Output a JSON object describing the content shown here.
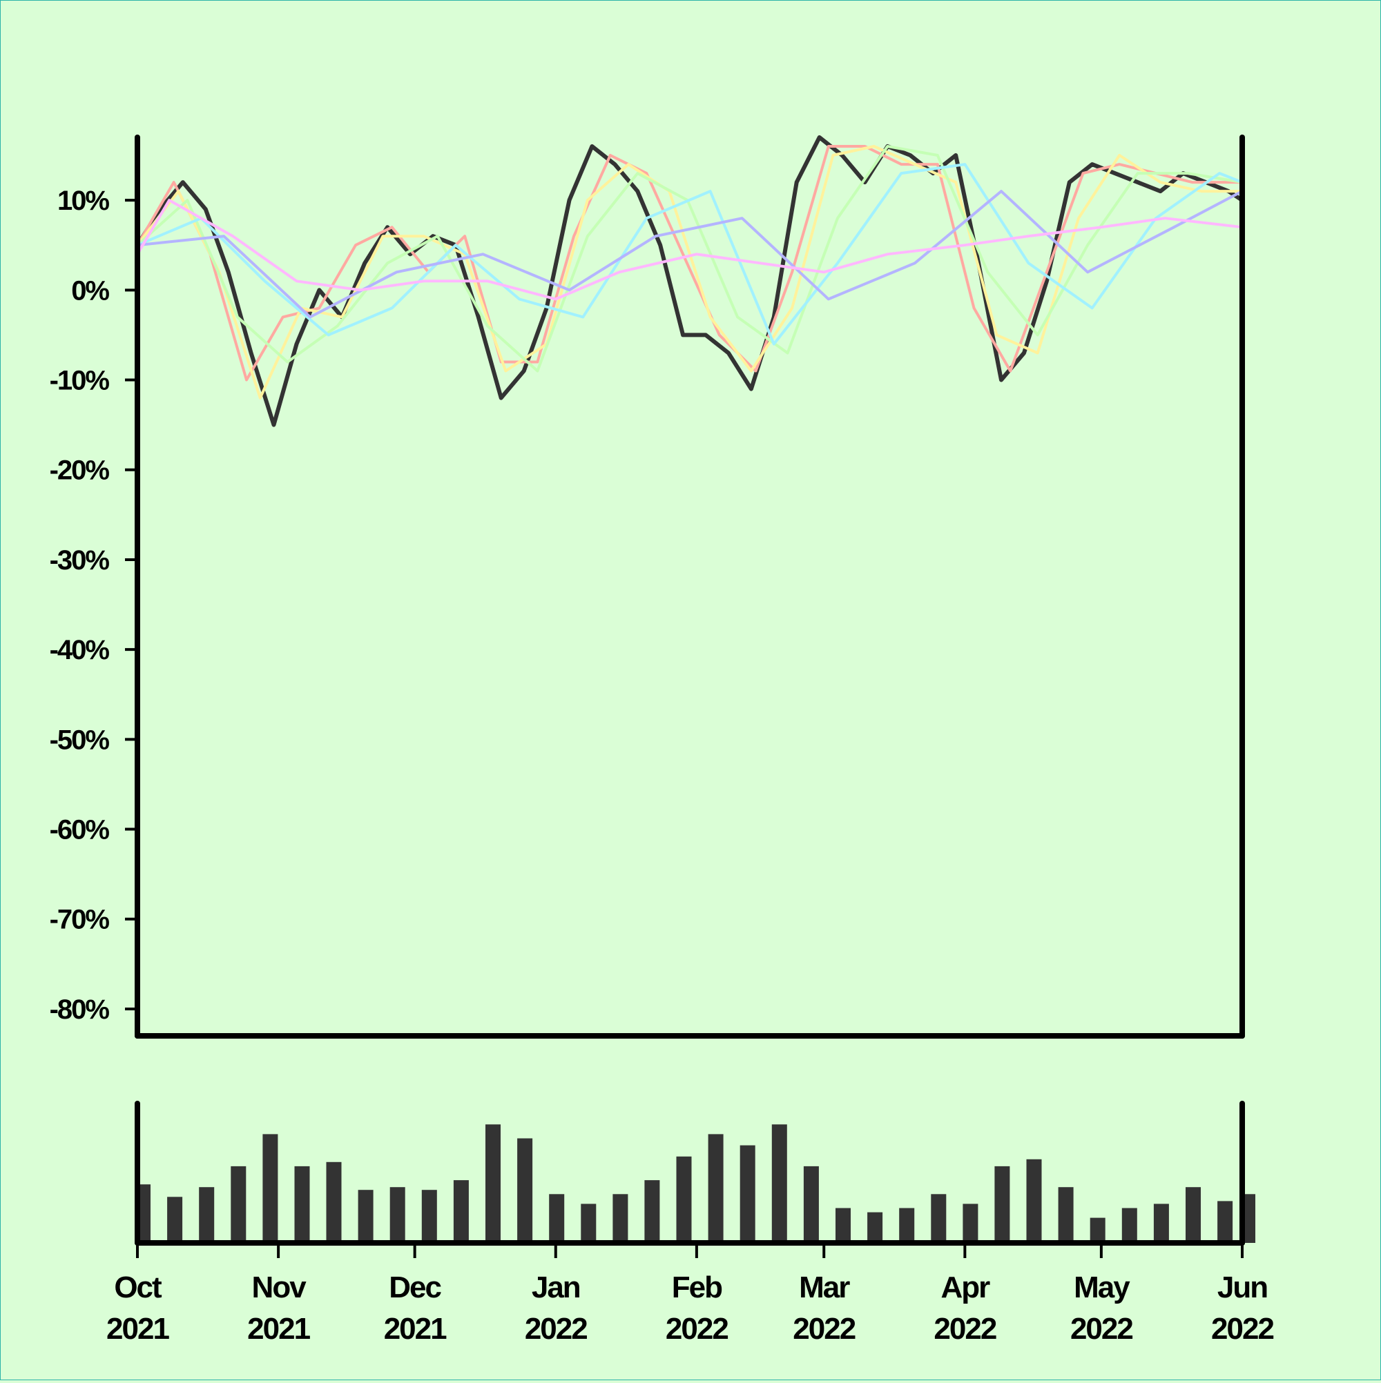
{
  "colors": {
    "background": "#dafed6",
    "price": "#333333",
    "axis": "#000000",
    "volume": "#333333"
  },
  "chart_data": [
    {
      "type": "line",
      "title": "",
      "xlabel": "",
      "ylabel": "",
      "xlim": [
        "2021-10-01",
        "2022-06-01"
      ],
      "ylim": [
        -83,
        17
      ],
      "yticks": [
        10,
        0,
        -10,
        -20,
        -30,
        -40,
        -50,
        -60,
        -70,
        -80
      ],
      "ytick_labels": [
        "10%",
        "0%",
        "-10%",
        "-20%",
        "-30%",
        "-40%",
        "-50%",
        "-60%",
        "-70%",
        "-80%"
      ],
      "xtick_labels": [
        [
          "Oct",
          "2021"
        ],
        [
          "Nov",
          "2021"
        ],
        [
          "Dec",
          "2021"
        ],
        [
          "Jan",
          "2022"
        ],
        [
          "Feb",
          "2022"
        ],
        [
          "Mar",
          "2022"
        ],
        [
          "Apr",
          "2022"
        ],
        [
          "May",
          "2022"
        ],
        [
          "Jun",
          "2022"
        ]
      ],
      "grid": false,
      "legend": "none",
      "series": [
        {
          "role": "price",
          "color": "#333333",
          "x": [
            "2021-10-01",
            "2021-10-06",
            "2021-10-11",
            "2021-10-16",
            "2021-10-21",
            "2021-10-26",
            "2021-10-31",
            "2021-11-05",
            "2021-11-10",
            "2021-11-15",
            "2021-11-20",
            "2021-11-25",
            "2021-11-30",
            "2021-12-05",
            "2021-12-10",
            "2021-12-15",
            "2021-12-20",
            "2021-12-25",
            "2021-12-30",
            "2022-01-04",
            "2022-01-09",
            "2022-01-14",
            "2022-01-19",
            "2022-01-24",
            "2022-01-29",
            "2022-02-03",
            "2022-02-08",
            "2022-02-13",
            "2022-02-18",
            "2022-02-23",
            "2022-02-28",
            "2022-03-05",
            "2022-03-10",
            "2022-03-15",
            "2022-03-20",
            "2022-03-25",
            "2022-03-30",
            "2022-04-04",
            "2022-04-09",
            "2022-04-14",
            "2022-04-19",
            "2022-04-24",
            "2022-04-29",
            "2022-05-04",
            "2022-05-09",
            "2022-05-14",
            "2022-05-19",
            "2022-05-24",
            "2022-05-29",
            "2022-06-01"
          ],
          "values": [
            5,
            9,
            12,
            9,
            2,
            -7,
            -15,
            -6,
            0,
            -3,
            3,
            7,
            4,
            6,
            5,
            -3,
            -12,
            -9,
            -2,
            10,
            16,
            14,
            11,
            5,
            -5,
            -5,
            -7,
            -11,
            -3,
            12,
            17,
            15,
            12,
            16,
            15,
            13,
            15,
            3,
            -10,
            -7,
            1,
            12,
            14,
            13,
            12,
            11,
            13,
            12,
            11,
            10
          ]
        },
        {
          "role": "moving-average",
          "color": "#ffa9a1",
          "x": [
            "2021-10-01",
            "2021-10-09",
            "2021-10-17",
            "2021-10-25",
            "2021-11-02",
            "2021-11-10",
            "2021-11-18",
            "2021-11-26",
            "2021-12-04",
            "2021-12-12",
            "2021-12-20",
            "2021-12-28",
            "2022-01-05",
            "2022-01-13",
            "2022-01-21",
            "2022-01-29",
            "2022-02-06",
            "2022-02-14",
            "2022-02-22",
            "2022-03-02",
            "2022-03-10",
            "2022-03-18",
            "2022-03-26",
            "2022-04-03",
            "2022-04-11",
            "2022-04-19",
            "2022-04-27",
            "2022-05-05",
            "2022-05-13",
            "2022-05-21",
            "2022-06-01"
          ],
          "values": [
            5,
            12,
            4,
            -10,
            -3,
            -2,
            5,
            7,
            2,
            6,
            -8,
            -8,
            6,
            15,
            13,
            4,
            -5,
            -9,
            2,
            16,
            16,
            14,
            14,
            -2,
            -9,
            2,
            13,
            14,
            13,
            12,
            12
          ]
        },
        {
          "role": "moving-average",
          "color": "#fff29c",
          "x": [
            "2021-10-01",
            "2021-10-10",
            "2021-10-19",
            "2021-10-28",
            "2021-11-06",
            "2021-11-15",
            "2021-11-24",
            "2021-12-03",
            "2021-12-12",
            "2021-12-21",
            "2021-12-30",
            "2022-01-08",
            "2022-01-17",
            "2022-01-26",
            "2022-02-04",
            "2022-02-13",
            "2022-02-22",
            "2022-03-03",
            "2022-03-12",
            "2022-03-21",
            "2022-03-30",
            "2022-04-08",
            "2022-04-17",
            "2022-04-26",
            "2022-05-05",
            "2022-05-14",
            "2022-05-23",
            "2022-06-01"
          ],
          "values": [
            5,
            11,
            2,
            -12,
            -2,
            -3,
            6,
            6,
            4,
            -9,
            -6,
            10,
            14,
            11,
            -3,
            -9,
            -2,
            15,
            16,
            14,
            12,
            -5,
            -7,
            8,
            15,
            12,
            11,
            11
          ]
        },
        {
          "role": "moving-average",
          "color": "#c5ffb5",
          "x": [
            "2021-10-01",
            "2021-10-12",
            "2021-10-23",
            "2021-11-03",
            "2021-11-14",
            "2021-11-25",
            "2021-12-06",
            "2021-12-17",
            "2021-12-28",
            "2022-01-08",
            "2022-01-19",
            "2022-01-30",
            "2022-02-10",
            "2022-02-21",
            "2022-03-04",
            "2022-03-15",
            "2022-03-26",
            "2022-04-06",
            "2022-04-17",
            "2022-04-28",
            "2022-05-09",
            "2022-05-20",
            "2022-06-01"
          ],
          "values": [
            5,
            10,
            -3,
            -8,
            -4,
            3,
            6,
            -4,
            -9,
            6,
            13,
            10,
            -3,
            -7,
            8,
            16,
            15,
            2,
            -5,
            5,
            13,
            13,
            12
          ]
        },
        {
          "role": "moving-average",
          "color": "#a1f1ff",
          "x": [
            "2021-10-01",
            "2021-10-15",
            "2021-10-29",
            "2021-11-12",
            "2021-11-26",
            "2021-12-10",
            "2021-12-24",
            "2022-01-07",
            "2022-01-21",
            "2022-02-04",
            "2022-02-18",
            "2022-03-04",
            "2022-03-18",
            "2022-04-01",
            "2022-04-15",
            "2022-04-29",
            "2022-05-13",
            "2022-05-27",
            "2022-06-01"
          ],
          "values": [
            5,
            8,
            1,
            -5,
            -2,
            5,
            -1,
            -3,
            8,
            11,
            -6,
            3,
            13,
            14,
            3,
            -2,
            8,
            13,
            12
          ]
        },
        {
          "role": "moving-average",
          "color": "#b4b4ff",
          "x": [
            "2021-10-01",
            "2021-10-20",
            "2021-11-08",
            "2021-11-27",
            "2021-12-16",
            "2022-01-04",
            "2022-01-23",
            "2022-02-11",
            "2022-03-02",
            "2022-03-21",
            "2022-04-09",
            "2022-04-28",
            "2022-05-17",
            "2022-06-01"
          ],
          "values": [
            5,
            6,
            -3,
            2,
            4,
            0,
            6,
            8,
            -1,
            3,
            11,
            2,
            7,
            11
          ]
        },
        {
          "role": "moving-average",
          "color": "#ffb8ff",
          "x": [
            "2021-10-01",
            "2021-10-08",
            "2021-10-22",
            "2021-11-05",
            "2021-11-19",
            "2021-12-03",
            "2021-12-17",
            "2022-01-01",
            "2022-01-15",
            "2022-02-01",
            "2022-02-15",
            "2022-03-01",
            "2022-03-15",
            "2022-04-01",
            "2022-04-15",
            "2022-05-01",
            "2022-05-15",
            "2022-06-01"
          ],
          "values": [
            4,
            10,
            6,
            1,
            0,
            1,
            1,
            -1,
            2,
            4,
            3,
            2,
            4,
            5,
            6,
            7,
            8,
            7
          ]
        }
      ]
    },
    {
      "type": "bar",
      "role": "volume",
      "title": "",
      "xlim": [
        "2021-10-01",
        "2022-06-01"
      ],
      "ylim": [
        0,
        1
      ],
      "color": "#333333",
      "x": [
        "2021-10-01",
        "2021-10-08",
        "2021-10-15",
        "2021-10-22",
        "2021-10-29",
        "2021-11-05",
        "2021-11-12",
        "2021-11-19",
        "2021-11-26",
        "2021-12-03",
        "2021-12-10",
        "2021-12-17",
        "2021-12-24",
        "2021-12-31",
        "2022-01-07",
        "2022-01-14",
        "2022-01-21",
        "2022-01-28",
        "2022-02-04",
        "2022-02-11",
        "2022-02-18",
        "2022-02-25",
        "2022-03-04",
        "2022-03-11",
        "2022-03-18",
        "2022-03-25",
        "2022-04-01",
        "2022-04-08",
        "2022-04-15",
        "2022-04-22",
        "2022-04-29",
        "2022-05-06",
        "2022-05-13",
        "2022-05-20",
        "2022-05-27",
        "2022-06-01"
      ],
      "values": [
        0.42,
        0.33,
        0.4,
        0.55,
        0.78,
        0.55,
        0.58,
        0.38,
        0.4,
        0.38,
        0.45,
        0.85,
        0.75,
        0.35,
        0.28,
        0.35,
        0.45,
        0.62,
        0.78,
        0.7,
        0.85,
        0.55,
        0.25,
        0.22,
        0.25,
        0.35,
        0.28,
        0.55,
        0.6,
        0.4,
        0.18,
        0.25,
        0.28,
        0.4,
        0.3,
        0.35
      ]
    }
  ]
}
